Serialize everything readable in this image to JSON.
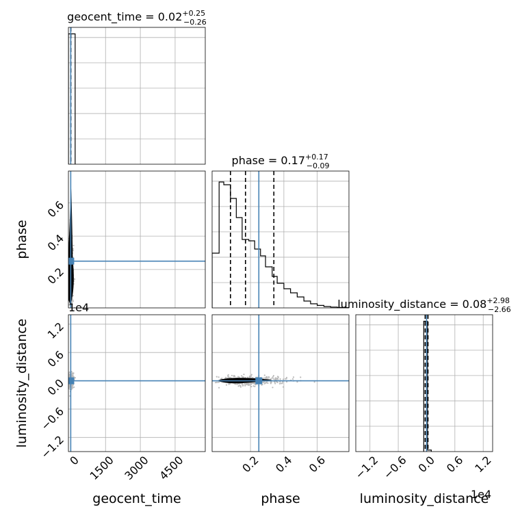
{
  "chart_data": {
    "type": "corner",
    "colors": {
      "hist": "#000000",
      "truth": "#4682b4",
      "samples": "#bbbbbb",
      "grid": "#b0b0b0"
    },
    "parameters": [
      {
        "name": "geocent_time",
        "axis_label": "geocent_time",
        "title": {
          "prefix": "geocent_time = 0.02",
          "plus": "+0.25",
          "minus": "−0.26"
        },
        "range": [
          -100,
          5800
        ],
        "ticks": [
          0,
          1500,
          3000,
          4500
        ],
        "tick_labels": [
          "0",
          "1500",
          "3000",
          "4500"
        ],
        "truth": 0,
        "quantiles": [
          -0.24,
          0.02,
          0.27
        ],
        "hist": {
          "edges": [
            -100,
            190
          ],
          "counts": [
            1.0
          ],
          "ylim": [
            0,
            1.05
          ]
        }
      },
      {
        "name": "phase",
        "axis_label": "phase",
        "title": {
          "prefix": "phase = 0.17",
          "plus": "+0.17",
          "minus": "−0.09"
        },
        "range": [
          -0.03,
          0.79
        ],
        "ticks": [
          0.2,
          0.4,
          0.6
        ],
        "tick_labels": [
          "0.2",
          "0.4",
          "0.6"
        ],
        "truth": 0.25,
        "quantiles": [
          0.08,
          0.17,
          0.34
        ],
        "hist": {
          "edges": [
            -0.03,
            0.012,
            0.04,
            0.08,
            0.115,
            0.15,
            0.19,
            0.225,
            0.26,
            0.29,
            0.33,
            0.36,
            0.4,
            0.44,
            0.48,
            0.52,
            0.56,
            0.6,
            0.64,
            0.68,
            0.72,
            0.76,
            0.79
          ],
          "counts": [
            0.4,
            0.92,
            0.9,
            0.8,
            0.66,
            0.5,
            0.49,
            0.43,
            0.38,
            0.3,
            0.23,
            0.18,
            0.14,
            0.11,
            0.08,
            0.05,
            0.03,
            0.018,
            0.01,
            0.006,
            0.003,
            0.002
          ],
          "ylim": [
            0,
            1.0
          ]
        }
      },
      {
        "name": "luminosity_distance",
        "axis_label": "luminosity_distance",
        "title": {
          "prefix": "luminosity_distance = 0.08",
          "plus": "+2.98",
          "minus": "−2.66"
        },
        "range": [
          -1.5,
          1.4
        ],
        "ticks": [
          -1.2,
          -0.6,
          0.0,
          0.6,
          1.2
        ],
        "tick_labels": [
          "−1.2",
          "−0.6",
          "0.0",
          "0.6",
          "1.2"
        ],
        "scale_label": "1e4",
        "truth": 0.0,
        "quantiles": [
          -0.03,
          0.0,
          0.03
        ],
        "hist": {
          "edges": [
            -0.06,
            0.02,
            0.1
          ],
          "counts": [
            1.0,
            0.012
          ],
          "ylim": [
            0,
            1.05
          ]
        }
      }
    ],
    "grid": true
  }
}
